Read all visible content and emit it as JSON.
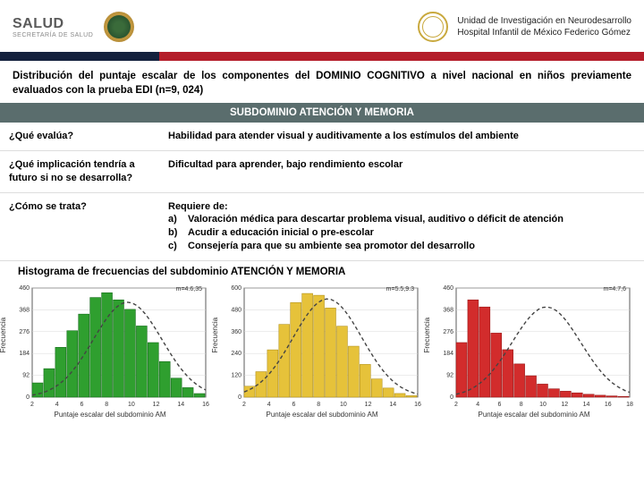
{
  "header": {
    "salud_main": "SALUD",
    "salud_sub": "SECRETARÍA DE SALUD",
    "unit_line1": "Unidad de Investigación en Neurodesarrollo",
    "unit_line2": "Hospital Infantil de México Federico Gómez"
  },
  "title": "Distribución del puntaje escalar de los componentes del DOMINIO COGNITIVO a nivel nacional en niños previamente evaluados con la prueba EDI (n=9, 024)",
  "subdomain_bar": "SUBDOMINIO ATENCIÓN Y MEMORIA",
  "qa": {
    "q1": "¿Qué evalúa?",
    "a1": "Habilidad para atender visual y auditivamente a los estímulos del ambiente",
    "q2": "¿Qué implicación tendría a futuro si no se desarrolla?",
    "a2": "Dificultad para aprender, bajo rendimiento escolar",
    "q3": "¿Cómo se trata?",
    "a3_intro": "Requiere de:",
    "a3_a": "Valoración médica para descartar problema visual, auditivo o déficit de atención",
    "a3_b": "Acudir a educación inicial o pre-escolar",
    "a3_c": "Consejería para que su ambiente sea promotor del desarrollo"
  },
  "hist_title": "Histograma de frecuencias del subdominio ATENCIÓN Y MEMORIA",
  "charts": [
    {
      "type": "histogram",
      "color": "#2f9f2f",
      "border": "#1a7020",
      "stats": "m=4.6,35",
      "x_label": "Puntaje escalar del subdominio AM",
      "y_label": "Frecuencia",
      "x_ticks": [
        2,
        4,
        6,
        8,
        10,
        12,
        14,
        16
      ],
      "y_max": 460,
      "values": [
        60,
        120,
        210,
        280,
        350,
        420,
        440,
        410,
        370,
        300,
        230,
        150,
        80,
        40,
        15
      ],
      "curve_peak_x": 0.55,
      "curve_peak_y": 400
    },
    {
      "type": "histogram",
      "color": "#e6c23a",
      "border": "#b59420",
      "stats": "m=5.5,9.3",
      "x_label": "Puntaje escalar del subdominio AM",
      "y_label": "Frecuencia",
      "x_ticks": [
        2,
        4,
        6,
        8,
        10,
        12,
        14,
        16
      ],
      "y_max": 600,
      "values": [
        60,
        140,
        260,
        400,
        520,
        570,
        560,
        490,
        390,
        280,
        180,
        100,
        50,
        20,
        8
      ],
      "curve_peak_x": 0.48,
      "curve_peak_y": 540
    },
    {
      "type": "histogram",
      "color": "#d22c2c",
      "border": "#9a1a1a",
      "stats": "m=4.7,6",
      "x_label": "Puntaje escalar del subdominio AM",
      "y_label": "Frecuencia",
      "x_ticks": [
        2,
        4,
        6,
        8,
        10,
        12,
        14,
        16,
        18
      ],
      "y_max": 460,
      "values": [
        230,
        410,
        380,
        270,
        200,
        140,
        90,
        55,
        35,
        25,
        18,
        12,
        8,
        5,
        3
      ],
      "curve_peak_x": 0.52,
      "curve_peak_y": 380
    }
  ],
  "chart_style": {
    "bg": "#ffffff",
    "grid": "#d8d8d8",
    "axis": "#333333",
    "curve": "#444444",
    "tick_fontsize": 7
  }
}
